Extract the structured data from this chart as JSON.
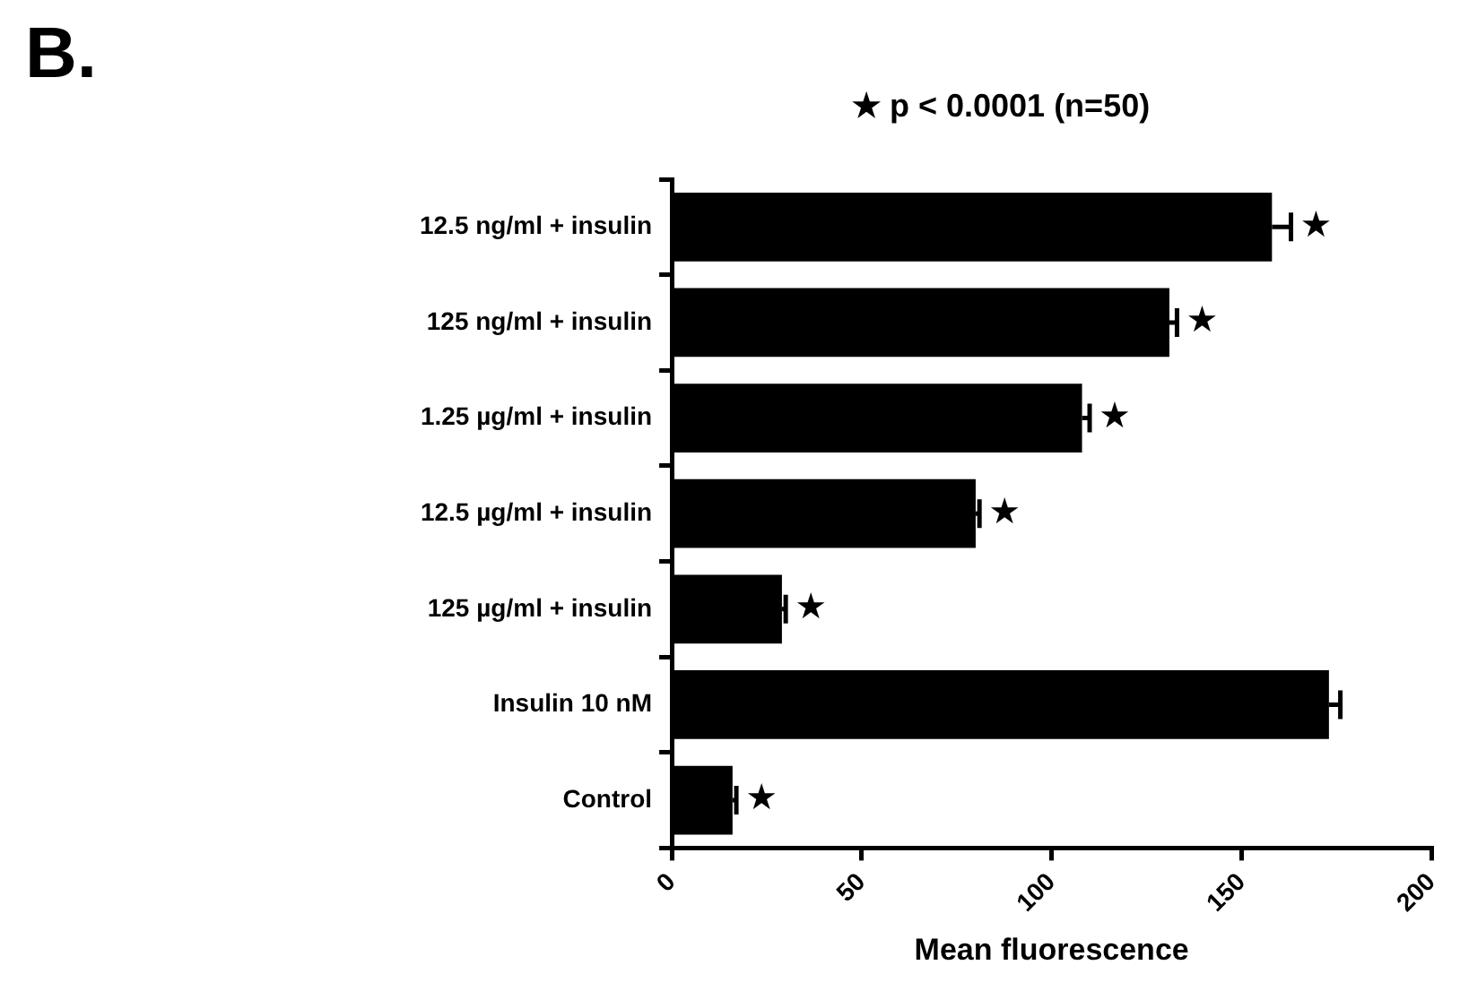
{
  "chart_data": {
    "type": "bar",
    "orientation": "horizontal",
    "title": "B.",
    "xlabel": "Mean fluorescence",
    "categories": [
      "12.5 ng/ml + insulin",
      "125 ng/ml + insulin",
      "1.25 µg/ml + insulin",
      "12.5 µg/ml + insulin",
      "125 µg/ml + insulin",
      "Insulin 10 nM",
      "Control"
    ],
    "values": [
      158,
      131,
      108,
      80,
      29,
      173,
      16
    ],
    "errors": [
      [
        158,
        163
      ],
      [
        131,
        133
      ],
      [
        108,
        110
      ],
      [
        80,
        81
      ],
      [
        29,
        30
      ],
      [
        173,
        176
      ],
      [
        16,
        17
      ]
    ],
    "color": "#000000",
    "xlim": [
      0,
      200
    ],
    "xticks": [
      0,
      50,
      100,
      150,
      200
    ],
    "grid": false,
    "legend": false,
    "value_labels": [
      "★",
      "★",
      "★",
      "★",
      "★",
      null,
      "★"
    ],
    "annotations": [
      "★ p < 0.0001 (n=50)"
    ]
  }
}
